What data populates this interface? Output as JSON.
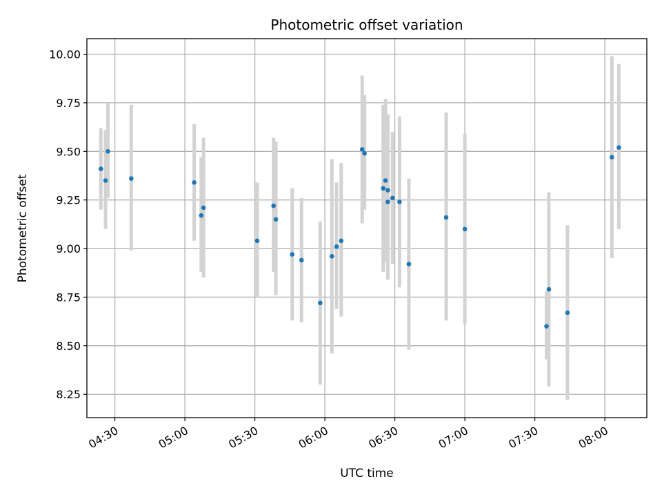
{
  "chart_data": {
    "type": "scatter",
    "title": "Photometric offset variation",
    "xlabel": "UTC time",
    "ylabel": "Photometric offset",
    "xlim": [
      "04:18",
      "08:18"
    ],
    "ylim": [
      8.13,
      10.08
    ],
    "grid": true,
    "x_ticks": [
      "04:30",
      "05:00",
      "05:30",
      "06:00",
      "06:30",
      "07:00",
      "07:30",
      "08:00"
    ],
    "y_ticks": [
      10.0,
      9.75,
      9.5,
      9.25,
      9.0,
      8.75,
      8.5,
      8.25
    ],
    "y_tick_labels": [
      "10.00",
      "9.75",
      "9.50",
      "9.25",
      "9.00",
      "8.75",
      "8.50",
      "8.25"
    ],
    "colors": {
      "point": "#1f77b4",
      "error_bar": "#d3d3d3",
      "grid": "#b0b0b0"
    },
    "points": [
      {
        "x": "04:24",
        "y": 9.41,
        "err_low": 9.2,
        "err_high": 9.62
      },
      {
        "x": "04:26",
        "y": 9.35,
        "err_low": 9.1,
        "err_high": 9.61
      },
      {
        "x": "04:27",
        "y": 9.5,
        "err_low": 9.26,
        "err_high": 9.75
      },
      {
        "x": "04:37",
        "y": 9.36,
        "err_low": 8.99,
        "err_high": 9.74
      },
      {
        "x": "05:04",
        "y": 9.34,
        "err_low": 9.04,
        "err_high": 9.64
      },
      {
        "x": "05:07",
        "y": 9.17,
        "err_low": 8.88,
        "err_high": 9.47
      },
      {
        "x": "05:08",
        "y": 9.21,
        "err_low": 8.85,
        "err_high": 9.57
      },
      {
        "x": "05:31",
        "y": 9.04,
        "err_low": 8.75,
        "err_high": 9.34
      },
      {
        "x": "05:38",
        "y": 9.22,
        "err_low": 8.88,
        "err_high": 9.57
      },
      {
        "x": "05:39",
        "y": 9.15,
        "err_low": 8.76,
        "err_high": 9.55
      },
      {
        "x": "05:46",
        "y": 8.97,
        "err_low": 8.63,
        "err_high": 9.31
      },
      {
        "x": "05:50",
        "y": 8.94,
        "err_low": 8.62,
        "err_high": 9.26
      },
      {
        "x": "05:58",
        "y": 8.72,
        "err_low": 8.3,
        "err_high": 9.14
      },
      {
        "x": "06:03",
        "y": 8.96,
        "err_low": 8.46,
        "err_high": 9.46
      },
      {
        "x": "06:05",
        "y": 9.01,
        "err_low": 8.69,
        "err_high": 9.34
      },
      {
        "x": "06:07",
        "y": 9.04,
        "err_low": 8.65,
        "err_high": 9.44
      },
      {
        "x": "06:16",
        "y": 9.51,
        "err_low": 9.13,
        "err_high": 9.89
      },
      {
        "x": "06:17",
        "y": 9.49,
        "err_low": 9.2,
        "err_high": 9.79
      },
      {
        "x": "06:25",
        "y": 9.31,
        "err_low": 8.88,
        "err_high": 9.74
      },
      {
        "x": "06:26",
        "y": 9.35,
        "err_low": 8.93,
        "err_high": 9.77
      },
      {
        "x": "06:27",
        "y": 9.24,
        "err_low": 8.84,
        "err_high": 9.64
      },
      {
        "x": "06:27",
        "y": 9.3,
        "err_low": 8.91,
        "err_high": 9.69
      },
      {
        "x": "06:29",
        "y": 9.26,
        "err_low": 8.92,
        "err_high": 9.6
      },
      {
        "x": "06:32",
        "y": 9.24,
        "err_low": 8.8,
        "err_high": 9.68
      },
      {
        "x": "06:36",
        "y": 8.92,
        "err_low": 8.48,
        "err_high": 9.36
      },
      {
        "x": "06:52",
        "y": 9.16,
        "err_low": 8.63,
        "err_high": 9.7
      },
      {
        "x": "07:00",
        "y": 9.1,
        "err_low": 8.61,
        "err_high": 9.59
      },
      {
        "x": "07:35",
        "y": 8.6,
        "err_low": 8.43,
        "err_high": 8.78
      },
      {
        "x": "07:36",
        "y": 8.79,
        "err_low": 8.29,
        "err_high": 9.29
      },
      {
        "x": "07:44",
        "y": 8.67,
        "err_low": 8.22,
        "err_high": 9.12
      },
      {
        "x": "08:03",
        "y": 9.47,
        "err_low": 8.95,
        "err_high": 9.99
      },
      {
        "x": "08:06",
        "y": 9.52,
        "err_low": 9.1,
        "err_high": 9.95
      }
    ]
  }
}
